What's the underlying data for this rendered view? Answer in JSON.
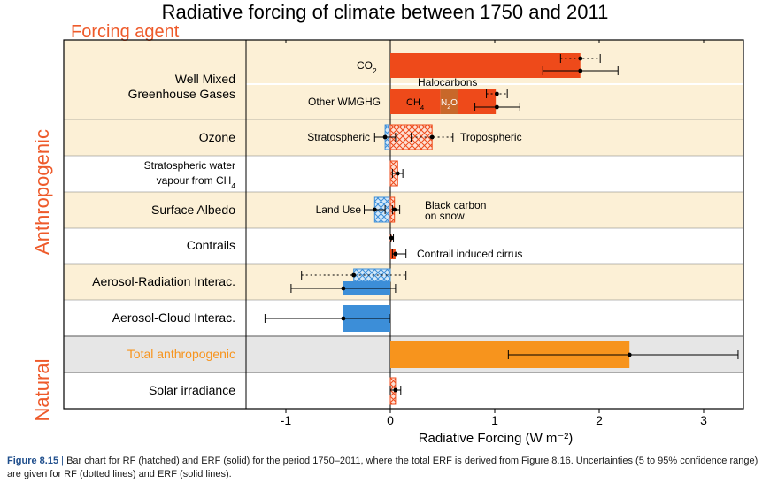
{
  "chart_data": {
    "type": "bar",
    "title": "Radiative forcing of climate between 1750 and 2011",
    "column_header": "Forcing agent",
    "xlabel": "Radiative Forcing (W m⁻²)",
    "xlim": [
      -1.4,
      3.4
    ],
    "xticks": [
      -1,
      0,
      1,
      2,
      3
    ],
    "groups": [
      {
        "name": "Anthropogenic",
        "color": "#ee5a2a"
      },
      {
        "name": "Natural",
        "color": "#ee5a2a"
      }
    ],
    "rows": [
      {
        "label": "Well Mixed Greenhouse Gases",
        "group": "Anthropogenic",
        "band": "#fcf0d6"
      },
      {
        "label": "Ozone",
        "group": "Anthropogenic",
        "band": "#fcf0d6"
      },
      {
        "label": "Stratospheric water vapour from CH₄",
        "group": "Anthropogenic",
        "band": "#ffffff"
      },
      {
        "label": "Surface Albedo",
        "group": "Anthropogenic",
        "band": "#fcf0d6"
      },
      {
        "label": "Contrails",
        "group": "Anthropogenic",
        "band": "#ffffff"
      },
      {
        "label": "Aerosol-Radiation Interac.",
        "group": "Anthropogenic",
        "band": "#fcf0d6"
      },
      {
        "label": "Aerosol-Cloud Interac.",
        "group": "Anthropogenic",
        "band": "#ffffff"
      },
      {
        "label": "Total anthropogenic",
        "group": "Anthropogenic",
        "band": "#e6e6e6",
        "label_color": "#f7941d"
      },
      {
        "label": "Solar irradiance",
        "group": "Natural",
        "band": "#ffffff"
      }
    ],
    "inline_labels": [
      "CO₂",
      "Other WMGHG",
      "Halocarbons",
      "CH₄",
      "N₂O",
      "Stratospheric",
      "Tropospheric",
      "Land Use",
      "Black carbon on snow",
      "Contrail induced cirrus"
    ],
    "series": [
      {
        "name": "CO₂",
        "kind": "erf",
        "value": 1.82,
        "erf_range": [
          1.46,
          2.18
        ],
        "rf_range": [
          1.63,
          2.01
        ],
        "color": "#ee4a1a"
      },
      {
        "name": "CH₄",
        "kind": "erf",
        "value": 0.48,
        "color": "#ee4a1a"
      },
      {
        "name": "N₂O",
        "kind": "erf",
        "value": 0.17,
        "color": "#c8682a"
      },
      {
        "name": "Halocarbons",
        "kind": "erf",
        "value": 0.36,
        "color": "#ee4a1a"
      },
      {
        "name": "Other WMGHG",
        "kind": "erf_total",
        "value": 1.02,
        "erf_range": [
          0.81,
          1.24
        ],
        "rf_range": [
          0.92,
          1.12
        ]
      },
      {
        "name": "Stratospheric ozone",
        "kind": "rf",
        "value": -0.05,
        "rf_range": [
          -0.15,
          0.05
        ],
        "color": "#3c8ed8"
      },
      {
        "name": "Tropospheric ozone",
        "kind": "rf",
        "value": 0.4,
        "rf_range": [
          0.2,
          0.6
        ],
        "color": "#ee4a1a"
      },
      {
        "name": "Stratospheric water vapour from CH₄",
        "kind": "rf",
        "value": 0.07,
        "rf_range": [
          0.02,
          0.12
        ],
        "color": "#ee4a1a"
      },
      {
        "name": "Land Use",
        "kind": "rf",
        "value": -0.15,
        "rf_range": [
          -0.25,
          -0.05
        ],
        "color": "#3c8ed8"
      },
      {
        "name": "Black carbon on snow",
        "kind": "rf",
        "value": 0.04,
        "rf_range": [
          0.02,
          0.09
        ],
        "color": "#ee4a1a"
      },
      {
        "name": "Contrails",
        "kind": "rf",
        "value": 0.01,
        "rf_range": [
          0.005,
          0.03
        ],
        "color": "#ee4a1a"
      },
      {
        "name": "Contrail induced cirrus",
        "kind": "erf",
        "value": 0.05,
        "erf_range": [
          0.02,
          0.15
        ],
        "color": "#ee4a1a"
      },
      {
        "name": "Aerosol-Radiation Interac. (RF)",
        "kind": "rf",
        "value": -0.35,
        "rf_range": [
          -0.85,
          0.15
        ],
        "color": "#3c8ed8"
      },
      {
        "name": "Aerosol-Radiation Interac. (ERF)",
        "kind": "erf",
        "value": -0.45,
        "erf_range": [
          -0.95,
          0.05
        ],
        "color": "#3c8ed8"
      },
      {
        "name": "Aerosol-Cloud Interac.",
        "kind": "erf",
        "value": -0.45,
        "erf_range": [
          -1.2,
          0.0
        ],
        "color": "#3c8ed8"
      },
      {
        "name": "Total anthropogenic",
        "kind": "erf",
        "value": 2.29,
        "erf_range": [
          1.13,
          3.33
        ],
        "color": "#f7941d"
      },
      {
        "name": "Solar irradiance",
        "kind": "rf",
        "value": 0.05,
        "rf_range": [
          0.0,
          0.1
        ],
        "color": "#ee4a1a"
      }
    ]
  },
  "caption": {
    "label": "Figure 8.15",
    "separator": "|",
    "text": "Bar chart for RF (hatched) and ERF (solid) for the period 1750–2011, where the total ERF is derived from Figure 8.16. Uncertainties (5 to 95% confidence range) are given for RF (dotted lines) and ERF (solid lines)."
  }
}
